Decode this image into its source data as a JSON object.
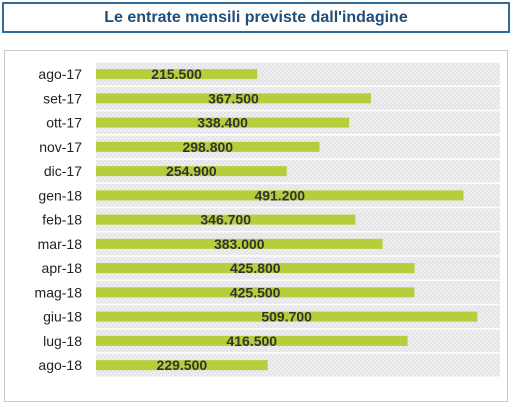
{
  "title": "Le entrate mensili previste dall'indagine",
  "colors": {
    "title_text": "#1f4e79",
    "title_border": "#2f6b9a",
    "bar": "#b5cf3c",
    "plot_bg": "#eceeef"
  },
  "chart_data": {
    "type": "bar",
    "orientation": "horizontal",
    "title": "Le entrate mensili previste dall'indagine",
    "categories": [
      "ago-17",
      "set-17",
      "ott-17",
      "nov-17",
      "dic-17",
      "gen-18",
      "feb-18",
      "mar-18",
      "apr-18",
      "mag-18",
      "giu-18",
      "lug-18",
      "ago-18"
    ],
    "values": [
      215500,
      367500,
      338400,
      298800,
      254900,
      491200,
      346700,
      383000,
      425800,
      425500,
      509700,
      416500,
      229500
    ],
    "labels": [
      "215.500",
      "367.500",
      "338.400",
      "298.800",
      "254.900",
      "491.200",
      "346.700",
      "383.000",
      "425.800",
      "425.500",
      "509.700",
      "416.500",
      "229.500"
    ],
    "xlim": [
      0,
      540000
    ],
    "grid": false,
    "legend": "none"
  }
}
